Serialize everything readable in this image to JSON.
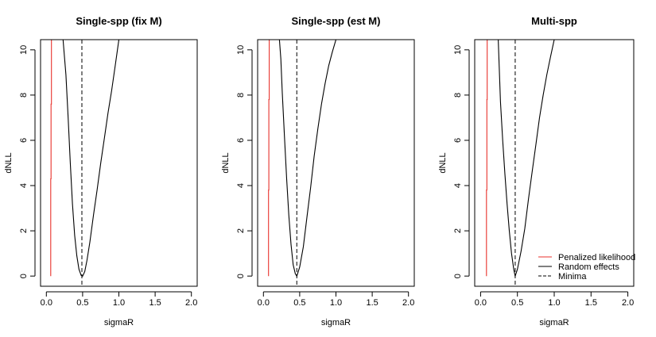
{
  "chart_data": [
    {
      "type": "line",
      "title": "Single-spp (fix M)",
      "xlabel": "sigmaR",
      "ylabel": "dNLL",
      "xlim": [
        -0.08,
        2.08
      ],
      "ylim": [
        -0.45,
        10.45
      ],
      "xticks": [
        "0.0",
        "0.5",
        "1.0",
        "1.5",
        "2.0"
      ],
      "yticks": [
        "0",
        "2",
        "4",
        "6",
        "8",
        "10"
      ],
      "series": [
        {
          "name": "Penalized likelihood",
          "color": "#e8322c",
          "style": "solid",
          "x": [
            0.06,
            0.06,
            0.065,
            0.065,
            0.07,
            0.07
          ],
          "y": [
            0.0,
            4.3,
            4.3,
            7.6,
            7.6,
            10.5
          ]
        },
        {
          "name": "Random effects",
          "color": "#000000",
          "style": "solid",
          "x": [
            0.23,
            0.27,
            0.3,
            0.33,
            0.36,
            0.39,
            0.42,
            0.45,
            0.48,
            0.5,
            0.53,
            0.56,
            0.6,
            0.65,
            0.7,
            0.75,
            0.8,
            0.85,
            0.9,
            0.95,
            1.0
          ],
          "y": [
            10.5,
            8.9,
            7.0,
            5.0,
            3.2,
            1.8,
            0.9,
            0.3,
            0.03,
            0.0,
            0.2,
            0.7,
            1.5,
            2.7,
            3.8,
            5.0,
            6.1,
            7.2,
            8.2,
            9.3,
            10.5
          ]
        },
        {
          "name": "Minima",
          "color": "#000000",
          "style": "dashed",
          "vline": 0.49
        }
      ]
    },
    {
      "type": "line",
      "title": "Single-spp (est M)",
      "xlabel": "sigmaR",
      "ylabel": "dNLL",
      "xlim": [
        -0.08,
        2.08
      ],
      "ylim": [
        -0.45,
        10.45
      ],
      "xticks": [
        "0.0",
        "0.5",
        "1.0",
        "1.5",
        "2.0"
      ],
      "yticks": [
        "0",
        "2",
        "4",
        "6",
        "8",
        "10"
      ],
      "series": [
        {
          "name": "Penalized likelihood",
          "color": "#e8322c",
          "style": "solid",
          "x": [
            0.07,
            0.07,
            0.075,
            0.075,
            0.08,
            0.08
          ],
          "y": [
            0.0,
            3.8,
            3.8,
            7.8,
            7.8,
            10.5
          ]
        },
        {
          "name": "Random effects",
          "color": "#000000",
          "style": "solid",
          "x": [
            0.22,
            0.24,
            0.26,
            0.29,
            0.32,
            0.35,
            0.38,
            0.41,
            0.44,
            0.46,
            0.5,
            0.55,
            0.6,
            0.65,
            0.7,
            0.75,
            0.8,
            0.85,
            0.9,
            0.95,
            1.0
          ],
          "y": [
            10.5,
            9.6,
            8.1,
            6.2,
            4.3,
            2.7,
            1.4,
            0.5,
            0.1,
            0.0,
            0.4,
            1.3,
            2.6,
            3.9,
            5.3,
            6.5,
            7.6,
            8.5,
            9.3,
            9.9,
            10.5
          ]
        },
        {
          "name": "Minima",
          "color": "#000000",
          "style": "dashed",
          "vline": 0.46
        }
      ]
    },
    {
      "type": "line",
      "title": "Multi-spp",
      "xlabel": "sigmaR",
      "ylabel": "dNLL",
      "xlim": [
        -0.08,
        2.08
      ],
      "ylim": [
        -0.45,
        10.45
      ],
      "xticks": [
        "0.0",
        "0.5",
        "1.0",
        "1.5",
        "2.0"
      ],
      "yticks": [
        "0",
        "2",
        "4",
        "6",
        "8",
        "10"
      ],
      "legend": {
        "position": "bottom-right",
        "entries": [
          {
            "label": "Penalized likelihood",
            "color": "#e8322c",
            "style": "solid"
          },
          {
            "label": "Random effects",
            "color": "#000000",
            "style": "solid"
          },
          {
            "label": "Minima",
            "color": "#000000",
            "style": "dashed"
          }
        ]
      },
      "series": [
        {
          "name": "Penalized likelihood",
          "color": "#e8322c",
          "style": "solid",
          "x": [
            0.08,
            0.08,
            0.085,
            0.085,
            0.09,
            0.09
          ],
          "y": [
            0.0,
            3.8,
            3.8,
            7.8,
            7.8,
            10.5
          ]
        },
        {
          "name": "Random effects",
          "color": "#000000",
          "style": "solid",
          "x": [
            0.24,
            0.27,
            0.3,
            0.33,
            0.36,
            0.39,
            0.42,
            0.45,
            0.47,
            0.5,
            0.55,
            0.6,
            0.65,
            0.7,
            0.75,
            0.8,
            0.85,
            0.9,
            0.95,
            1.0
          ],
          "y": [
            10.5,
            7.7,
            6.0,
            4.5,
            3.2,
            2.0,
            1.0,
            0.3,
            0.0,
            0.3,
            1.1,
            2.1,
            3.4,
            4.6,
            5.8,
            7.0,
            8.0,
            8.9,
            9.7,
            10.5
          ]
        },
        {
          "name": "Minima",
          "color": "#000000",
          "style": "dashed",
          "vline": 0.47
        }
      ]
    }
  ]
}
